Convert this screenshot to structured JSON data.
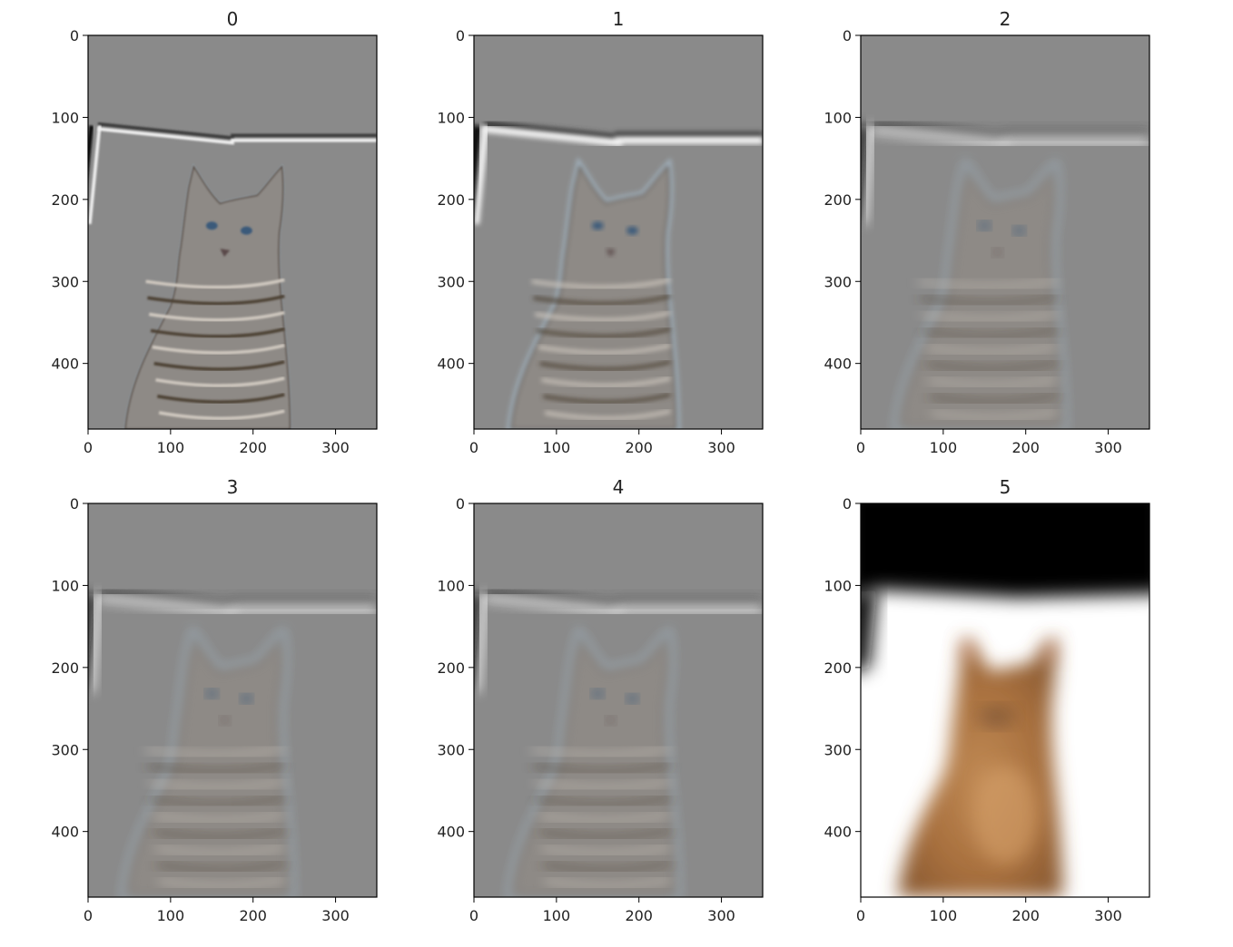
{
  "chart_data": [
    {
      "type": "heatmap",
      "title": "0",
      "xticks": [
        "0",
        "100",
        "200",
        "300"
      ],
      "yticks": [
        "0",
        "100",
        "200",
        "300",
        "400"
      ],
      "xlim": [
        0,
        350
      ],
      "ylim": [
        480,
        0
      ],
      "image_kind": "detail-edges",
      "background": "#8a8a8a"
    },
    {
      "type": "heatmap",
      "title": "1",
      "xticks": [
        "0",
        "100",
        "200",
        "300"
      ],
      "yticks": [
        "0",
        "100",
        "200",
        "300",
        "400"
      ],
      "xlim": [
        0,
        350
      ],
      "ylim": [
        480,
        0
      ],
      "image_kind": "detail-edges",
      "background": "#8a8a8a"
    },
    {
      "type": "heatmap",
      "title": "2",
      "xticks": [
        "0",
        "100",
        "200",
        "300"
      ],
      "yticks": [
        "0",
        "100",
        "200",
        "300",
        "400"
      ],
      "xlim": [
        0,
        350
      ],
      "ylim": [
        480,
        0
      ],
      "image_kind": "detail-edges",
      "background": "#8a8a8a"
    },
    {
      "type": "heatmap",
      "title": "3",
      "xticks": [
        "0",
        "100",
        "200",
        "300"
      ],
      "yticks": [
        "0",
        "100",
        "200",
        "300",
        "400"
      ],
      "xlim": [
        0,
        350
      ],
      "ylim": [
        480,
        0
      ],
      "image_kind": "detail-edges",
      "background": "#8a8a8a"
    },
    {
      "type": "heatmap",
      "title": "4",
      "xticks": [
        "0",
        "100",
        "200",
        "300"
      ],
      "yticks": [
        "0",
        "100",
        "200",
        "300",
        "400"
      ],
      "xlim": [
        0,
        350
      ],
      "ylim": [
        480,
        0
      ],
      "image_kind": "detail-edges",
      "background": "#8a8a8a"
    },
    {
      "type": "heatmap",
      "title": "5",
      "xticks": [
        "0",
        "100",
        "200",
        "300"
      ],
      "yticks": [
        "0",
        "100",
        "200",
        "300",
        "400"
      ],
      "xlim": [
        0,
        350
      ],
      "ylim": [
        480,
        0
      ],
      "image_kind": "blurred-photo",
      "background": "#ffffff"
    }
  ]
}
